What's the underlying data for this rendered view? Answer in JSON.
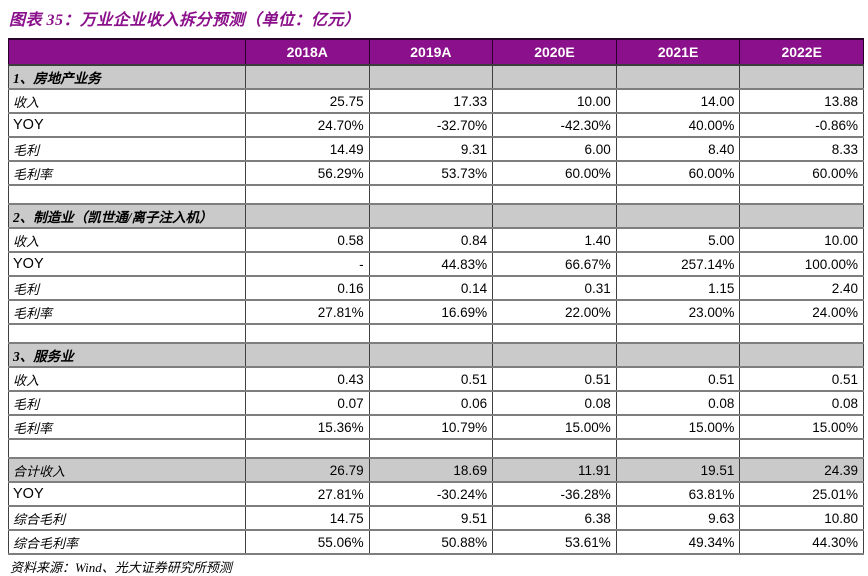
{
  "title": "图表 35：万业企业收入拆分预测（单位：亿元）",
  "source": "资料来源：Wind、光大证券研究所预测",
  "colors": {
    "accent": "#8B108B",
    "section_bg": "#CACACA",
    "grid_vertical": "#3f3f3f",
    "grid_horizontal": "#7e7e7e"
  },
  "chart_data": {
    "type": "table",
    "title": "图表 35：万业企业收入拆分预测（单位：亿元）",
    "columns": [
      "",
      "2018A",
      "2019A",
      "2020E",
      "2021E",
      "2022E"
    ],
    "rows": [
      {
        "type": "section",
        "label": "1、房地产业务",
        "values": [
          "",
          "",
          "",
          "",
          ""
        ]
      },
      {
        "type": "data",
        "label": "收入",
        "values": [
          "25.75",
          "17.33",
          "10.00",
          "14.00",
          "13.88"
        ]
      },
      {
        "type": "data",
        "label": "YOY",
        "values": [
          "24.70%",
          "-32.70%",
          "-42.30%",
          "40.00%",
          "-0.86%"
        ]
      },
      {
        "type": "data",
        "label": "毛利",
        "values": [
          "14.49",
          "9.31",
          "6.00",
          "8.40",
          "8.33"
        ]
      },
      {
        "type": "data",
        "label": "毛利率",
        "values": [
          "56.29%",
          "53.73%",
          "60.00%",
          "60.00%",
          "60.00%"
        ]
      },
      {
        "type": "spacer",
        "label": "",
        "values": [
          "",
          "",
          "",
          "",
          ""
        ]
      },
      {
        "type": "section",
        "label": "2、制造业（凯世通/离子注入机）",
        "values": [
          "",
          "",
          "",
          "",
          ""
        ]
      },
      {
        "type": "data",
        "label": "收入",
        "values": [
          "0.58",
          "0.84",
          "1.40",
          "5.00",
          "10.00"
        ]
      },
      {
        "type": "data",
        "label": "YOY",
        "values": [
          "-",
          "44.83%",
          "66.67%",
          "257.14%",
          "100.00%"
        ]
      },
      {
        "type": "data",
        "label": "毛利",
        "values": [
          "0.16",
          "0.14",
          "0.31",
          "1.15",
          "2.40"
        ]
      },
      {
        "type": "data",
        "label": "毛利率",
        "values": [
          "27.81%",
          "16.69%",
          "22.00%",
          "23.00%",
          "24.00%"
        ]
      },
      {
        "type": "spacer",
        "label": "",
        "values": [
          "",
          "",
          "",
          "",
          ""
        ]
      },
      {
        "type": "section",
        "label": "3、服务业",
        "values": [
          "",
          "",
          "",
          "",
          ""
        ]
      },
      {
        "type": "data",
        "label": "收入",
        "values": [
          "0.43",
          "0.51",
          "0.51",
          "0.51",
          "0.51"
        ]
      },
      {
        "type": "data",
        "label": "毛利",
        "values": [
          "0.07",
          "0.06",
          "0.08",
          "0.08",
          "0.08"
        ]
      },
      {
        "type": "data",
        "label": "毛利率",
        "values": [
          "15.36%",
          "10.79%",
          "15.00%",
          "15.00%",
          "15.00%"
        ]
      },
      {
        "type": "spacer",
        "label": "",
        "values": [
          "",
          "",
          "",
          "",
          ""
        ]
      },
      {
        "type": "total",
        "label": "合计收入",
        "values": [
          "26.79",
          "18.69",
          "11.91",
          "19.51",
          "24.39"
        ]
      },
      {
        "type": "data",
        "label": "YOY",
        "values": [
          "27.81%",
          "-30.24%",
          "-36.28%",
          "63.81%",
          "25.01%"
        ]
      },
      {
        "type": "data",
        "label": "综合毛利",
        "values": [
          "14.75",
          "9.51",
          "6.38",
          "9.63",
          "10.80"
        ]
      },
      {
        "type": "data",
        "label": "综合毛利率",
        "values": [
          "55.06%",
          "50.88%",
          "53.61%",
          "49.34%",
          "44.30%"
        ]
      }
    ]
  }
}
